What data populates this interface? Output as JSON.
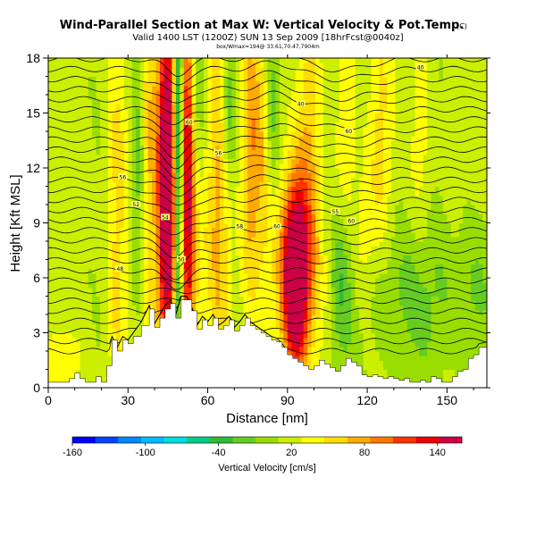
{
  "chart_data": {
    "type": "heatmap",
    "title": "Wind-Parallel Section at Max W: Vertical Velocity & Pot.Temp.",
    "title_mark": "(C)",
    "subtitle": "Valid 1400 LST (1200Z) SUN 13 Sep 2009 [18hrFcst@0040z]",
    "subsubtitle": "box/Wmax=194@ 33.61,70.47,7904m",
    "xlabel": "Distance [nm]",
    "ylabel": "Height [Kft MSL]",
    "xlim": [
      0,
      165
    ],
    "ylim": [
      0,
      18
    ],
    "xticks": [
      0,
      30,
      60,
      90,
      120,
      150
    ],
    "yticks": [
      0,
      3,
      6,
      9,
      12,
      15,
      18
    ],
    "colorbar": {
      "label": "Vertical Velocity [cm/s]",
      "tick_labels": [
        "-160",
        "-100",
        "-40",
        "20",
        "80",
        "140"
      ],
      "tick_values": [
        -160,
        -100,
        -40,
        20,
        80,
        140
      ],
      "range": [
        -160,
        160
      ],
      "colors": [
        "#0000ff",
        "#0044ff",
        "#0088ff",
        "#00bbff",
        "#00dddd",
        "#00cc88",
        "#33bb33",
        "#66cc22",
        "#99dd00",
        "#ccee00",
        "#ffff00",
        "#ffdd00",
        "#ffaa00",
        "#ff7700",
        "#ff3300",
        "#ee0000",
        "#cc0044"
      ]
    },
    "terrain_profile": {
      "x": [
        0,
        5,
        8,
        10,
        12,
        14,
        16,
        18,
        20,
        22,
        24,
        26,
        28,
        30,
        32,
        35,
        38,
        40,
        42,
        44,
        46,
        48,
        50,
        52,
        54,
        56,
        58,
        60,
        62,
        64,
        66,
        68,
        70,
        72,
        74,
        76,
        78,
        80,
        82,
        84,
        86,
        88,
        90,
        92,
        94,
        96,
        98,
        100,
        102,
        104,
        106,
        108,
        110,
        112,
        114,
        116,
        118,
        120,
        122,
        124,
        126,
        128,
        130,
        132,
        134,
        136,
        138,
        140,
        142,
        144,
        146,
        148,
        150,
        152,
        154,
        156,
        158,
        160,
        162,
        165
      ],
      "h": [
        0.3,
        0.3,
        0.5,
        0.8,
        0.5,
        0.3,
        0.3,
        0.6,
        0.3,
        1.2,
        2.6,
        2.0,
        2.6,
        2.4,
        2.8,
        3.4,
        4.3,
        3.3,
        3.8,
        4.3,
        4.6,
        3.8,
        4.8,
        4.8,
        4.2,
        3.2,
        3.7,
        3.4,
        3.8,
        3.2,
        3.4,
        3.7,
        3.1,
        3.4,
        3.8,
        3.4,
        3.2,
        3.0,
        2.8,
        2.6,
        2.5,
        2.2,
        1.8,
        1.6,
        1.4,
        1.2,
        1.0,
        1.2,
        1.5,
        1.3,
        1.1,
        0.9,
        1.2,
        1.6,
        1.4,
        1.2,
        0.7,
        0.6,
        0.7,
        0.6,
        0.5,
        0.6,
        0.5,
        0.4,
        0.5,
        0.3,
        0.3,
        0.4,
        0.3,
        0.6,
        0.5,
        0.3,
        0.3,
        0.6,
        0.9,
        1.0,
        1.6,
        1.8,
        2.2,
        2.3
      ]
    },
    "updrafts": [
      {
        "x": 5,
        "z": 1.2,
        "w": 25,
        "sx": 5,
        "sz": 1.5
      },
      {
        "x": 26,
        "z": 9,
        "w": 45,
        "sx": 3,
        "sz": 10
      },
      {
        "x": 38,
        "z": 13,
        "w": 50,
        "sx": 3,
        "sz": 7
      },
      {
        "x": 44,
        "z": 11,
        "w": 150,
        "sx": 2,
        "sz": 7
      },
      {
        "x": 47,
        "z": 11,
        "w": 110,
        "sx": 2,
        "sz": 7
      },
      {
        "x": 52,
        "z": 12,
        "w": 130,
        "sx": 2,
        "sz": 8
      },
      {
        "x": 55,
        "z": 8,
        "w": 65,
        "sx": 3,
        "sz": 5
      },
      {
        "x": 64,
        "z": 10,
        "w": 55,
        "sx": 3,
        "sz": 8
      },
      {
        "x": 76,
        "z": 13,
        "w": 65,
        "sx": 2.5,
        "sz": 6
      },
      {
        "x": 81,
        "z": 14,
        "w": 45,
        "sx": 2.5,
        "sz": 6
      },
      {
        "x": 93,
        "z": 6,
        "w": 155,
        "sx": 3,
        "sz": 3.2
      },
      {
        "x": 93,
        "z": 6.5,
        "w": 70,
        "sx": 7,
        "sz": 4
      },
      {
        "x": 98,
        "z": 14,
        "w": 40,
        "sx": 3,
        "sz": 5
      },
      {
        "x": 112,
        "z": 14,
        "w": 35,
        "sx": 3,
        "sz": 5
      },
      {
        "x": 125,
        "z": 14,
        "w": 35,
        "sx": 3,
        "sz": 5
      },
      {
        "x": 140,
        "z": 14,
        "w": 30,
        "sx": 3,
        "sz": 5
      },
      {
        "x": 119,
        "z": 8,
        "w": 30,
        "sx": 3,
        "sz": 3
      }
    ],
    "downdrafts": [
      {
        "x": 49,
        "z": 12,
        "w": -160,
        "sx": 1.5,
        "sz": 9
      },
      {
        "x": 56,
        "z": 12,
        "w": -40,
        "sx": 2,
        "sz": 6
      },
      {
        "x": 34,
        "z": 13,
        "w": -50,
        "sx": 2,
        "sz": 6
      },
      {
        "x": 68,
        "z": 15,
        "w": -50,
        "sx": 2,
        "sz": 3
      },
      {
        "x": 84,
        "z": 15,
        "w": -40,
        "sx": 2,
        "sz": 4
      },
      {
        "x": 110,
        "z": 6,
        "w": -40,
        "sx": 3,
        "sz": 3
      },
      {
        "x": 135,
        "z": 5,
        "w": -30,
        "sx": 14,
        "sz": 3
      },
      {
        "x": 160,
        "z": 5,
        "w": -25,
        "sx": 5,
        "sz": 3
      }
    ],
    "isentrope_labels": [
      {
        "x": 27,
        "z": 6.5,
        "text": "48"
      },
      {
        "x": 44,
        "z": 9.3,
        "text": "54"
      },
      {
        "x": 50,
        "z": 7,
        "text": "50"
      },
      {
        "x": 53,
        "z": 14.5,
        "text": "60"
      },
      {
        "x": 28,
        "z": 11.5,
        "text": "56"
      },
      {
        "x": 33,
        "z": 10,
        "text": "52"
      },
      {
        "x": 64,
        "z": 12.8,
        "text": "56"
      },
      {
        "x": 72,
        "z": 8.8,
        "text": "58"
      },
      {
        "x": 86,
        "z": 8.8,
        "text": "60"
      },
      {
        "x": 95,
        "z": 15.5,
        "text": "40"
      },
      {
        "x": 113,
        "z": 14,
        "text": "60"
      },
      {
        "x": 108,
        "z": 9.6,
        "text": "55"
      },
      {
        "x": 114,
        "z": 9.1,
        "text": "60"
      },
      {
        "x": 140,
        "z": 17.5,
        "text": "40"
      }
    ]
  }
}
